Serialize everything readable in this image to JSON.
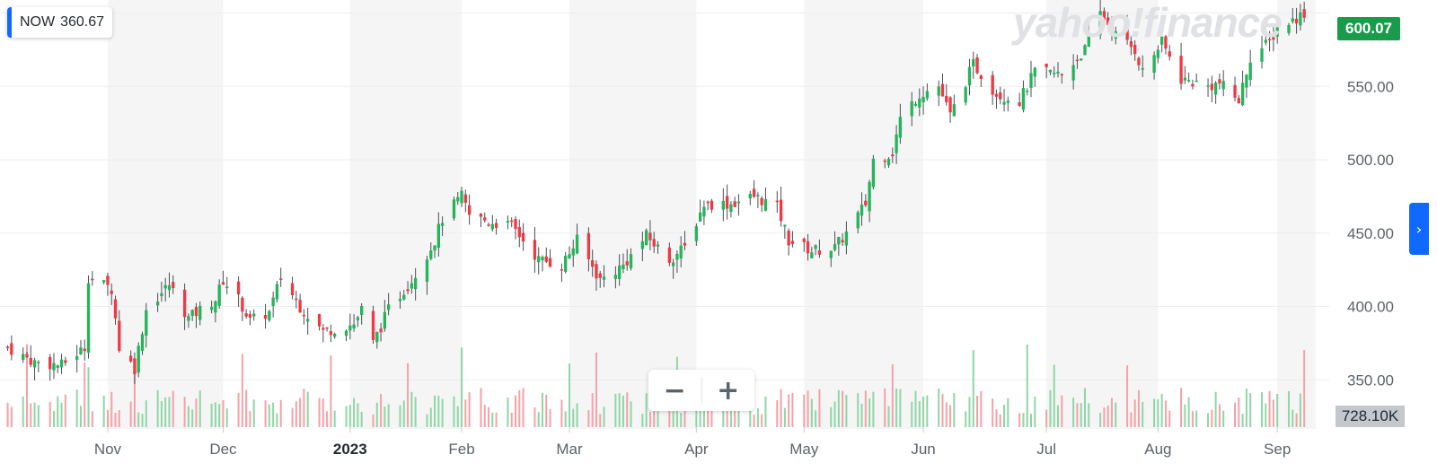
{
  "symbol": "NOW",
  "compare_value": "360.67",
  "watermark": "yahoo!finance",
  "last_price_label": "600.07",
  "volume_label": "728.10K",
  "zoom": {
    "minus": "−",
    "plus": "+"
  },
  "side_icon": "chevron-right-icon",
  "colors": {
    "up": "#26b45a",
    "down": "#ee3a45",
    "vol_up": "#8fd6a6",
    "vol_down": "#f6a1a6",
    "accent": "#0f69ff",
    "tag": "#1a9b4b"
  },
  "chart_data": {
    "type": "candlestick",
    "title": "",
    "y_ticks": [
      350,
      400,
      450,
      500,
      550,
      600
    ],
    "y_tick_labels": [
      "350.00",
      "400.00",
      "450.00",
      "500.00",
      "550.00",
      "600.07"
    ],
    "ylim": [
      330,
      615
    ],
    "x_ticks": [
      {
        "label": "Nov",
        "date": "2022-11-01"
      },
      {
        "label": "Dec",
        "date": "2022-12-01"
      },
      {
        "label": "2023",
        "date": "2023-01-03"
      },
      {
        "label": "Feb",
        "date": "2023-02-01"
      },
      {
        "label": "Mar",
        "date": "2023-03-01"
      },
      {
        "label": "Apr",
        "date": "2023-04-03"
      },
      {
        "label": "May",
        "date": "2023-05-01"
      },
      {
        "label": "Jun",
        "date": "2023-06-01"
      },
      {
        "label": "Jul",
        "date": "2023-07-03"
      },
      {
        "label": "Aug",
        "date": "2023-08-01"
      },
      {
        "label": "Sep",
        "date": "2023-09-01"
      }
    ],
    "x_range": [
      "2022-10-06",
      "2023-09-08"
    ],
    "close_series": [
      [
        "2022-10-06",
        372
      ],
      [
        "2022-10-13",
        362
      ],
      [
        "2022-10-20",
        360
      ],
      [
        "2022-10-26",
        372
      ],
      [
        "2022-10-27",
        420
      ],
      [
        "2022-11-02",
        412
      ],
      [
        "2022-11-04",
        372
      ],
      [
        "2022-11-08",
        358
      ],
      [
        "2022-11-11",
        398
      ],
      [
        "2022-11-17",
        415
      ],
      [
        "2022-11-22",
        392
      ],
      [
        "2022-11-29",
        405
      ],
      [
        "2022-12-01",
        418
      ],
      [
        "2022-12-05",
        405
      ],
      [
        "2022-12-08",
        390
      ],
      [
        "2022-12-13",
        396
      ],
      [
        "2022-12-16",
        420
      ],
      [
        "2022-12-21",
        400
      ],
      [
        "2022-12-27",
        383
      ],
      [
        "2023-01-04",
        388
      ],
      [
        "2023-01-06",
        398
      ],
      [
        "2023-01-09",
        375
      ],
      [
        "2023-01-13",
        398
      ],
      [
        "2023-01-19",
        418
      ],
      [
        "2023-01-25",
        445
      ],
      [
        "2023-01-27",
        460
      ],
      [
        "2023-02-01",
        475
      ],
      [
        "2023-02-03",
        462
      ],
      [
        "2023-02-08",
        458
      ],
      [
        "2023-02-14",
        455
      ],
      [
        "2023-02-21",
        432
      ],
      [
        "2023-02-27",
        428
      ],
      [
        "2023-03-03",
        445
      ],
      [
        "2023-03-09",
        418
      ],
      [
        "2023-03-15",
        428
      ],
      [
        "2023-03-21",
        448
      ],
      [
        "2023-03-27",
        432
      ],
      [
        "2023-03-31",
        440
      ],
      [
        "2023-04-05",
        470
      ],
      [
        "2023-04-12",
        470
      ],
      [
        "2023-04-18",
        475
      ],
      [
        "2023-04-24",
        468
      ],
      [
        "2023-04-27",
        445
      ],
      [
        "2023-05-03",
        438
      ],
      [
        "2023-05-09",
        440
      ],
      [
        "2023-05-12",
        450
      ],
      [
        "2023-05-17",
        470
      ],
      [
        "2023-05-19",
        500
      ],
      [
        "2023-05-24",
        505
      ],
      [
        "2023-05-26",
        528
      ],
      [
        "2023-05-31",
        545
      ],
      [
        "2023-06-05",
        550
      ],
      [
        "2023-06-08",
        530
      ],
      [
        "2023-06-14",
        565
      ],
      [
        "2023-06-20",
        545
      ],
      [
        "2023-06-26",
        540
      ],
      [
        "2023-06-30",
        560
      ],
      [
        "2023-07-07",
        558
      ],
      [
        "2023-07-13",
        575
      ],
      [
        "2023-07-17",
        600
      ],
      [
        "2023-07-21",
        585
      ],
      [
        "2023-07-26",
        575
      ],
      [
        "2023-07-28",
        560
      ],
      [
        "2023-08-02",
        580
      ],
      [
        "2023-08-07",
        555
      ],
      [
        "2023-08-14",
        550
      ],
      [
        "2023-08-17",
        552
      ],
      [
        "2023-08-22",
        540
      ],
      [
        "2023-08-25",
        570
      ],
      [
        "2023-08-30",
        580
      ],
      [
        "2023-09-01",
        590
      ],
      [
        "2023-09-05",
        595
      ],
      [
        "2023-09-08",
        600
      ]
    ],
    "volume": {
      "max_label": "728.10K"
    }
  }
}
